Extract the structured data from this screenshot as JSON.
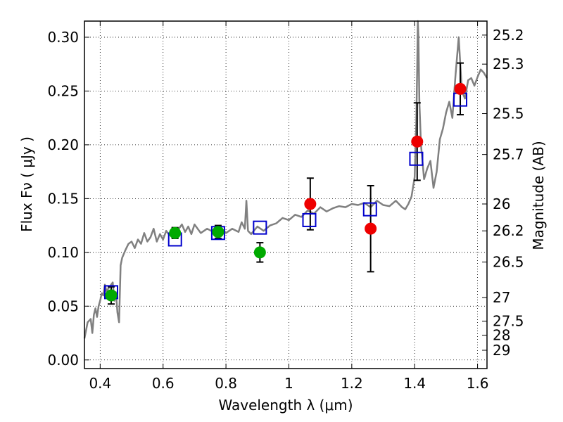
{
  "chart_data": {
    "type": "scatter",
    "xlabel": "Wavelength  λ (μm)",
    "ylabel": "Flux  Fν  ( μJy )",
    "ylabel_right": "Magnitude (AB)",
    "xlim": [
      0.35,
      1.63
    ],
    "ylim": [
      -0.008,
      0.315
    ],
    "grid": true,
    "x_ticks": [
      0.4,
      0.6,
      0.8,
      1.0,
      1.2,
      1.4,
      1.6
    ],
    "x_tick_labels": [
      "0.4",
      "0.6",
      "0.8",
      "1",
      "1.2",
      "1.4",
      "1.6"
    ],
    "y_ticks": [
      0.0,
      0.05,
      0.1,
      0.15,
      0.2,
      0.25,
      0.3
    ],
    "y_tick_labels": [
      "0.00",
      "0.05",
      "0.10",
      "0.15",
      "0.20",
      "0.25",
      "0.30"
    ],
    "right_ticks": [
      {
        "label": "25.2",
        "flux": 0.302
      },
      {
        "label": "25.3",
        "flux": 0.275
      },
      {
        "label": "25.5",
        "flux": 0.229
      },
      {
        "label": "25.7",
        "flux": 0.191
      },
      {
        "label": "26",
        "flux": 0.145
      },
      {
        "label": "26.2",
        "flux": 0.12
      },
      {
        "label": "26.5",
        "flux": 0.091
      },
      {
        "label": "27",
        "flux": 0.058
      },
      {
        "label": "27.5",
        "flux": 0.036
      },
      {
        "label": "28",
        "flux": 0.023
      },
      {
        "label": "29",
        "flux": 0.009
      }
    ],
    "series": [
      {
        "kind": "model-spectrum",
        "color": "#808080",
        "x": [
          0.35,
          0.36,
          0.37,
          0.375,
          0.38,
          0.385,
          0.39,
          0.395,
          0.4,
          0.405,
          0.41,
          0.415,
          0.42,
          0.43,
          0.44,
          0.445,
          0.45,
          0.455,
          0.46,
          0.465,
          0.47,
          0.48,
          0.49,
          0.5,
          0.51,
          0.52,
          0.53,
          0.54,
          0.55,
          0.56,
          0.57,
          0.58,
          0.59,
          0.6,
          0.61,
          0.62,
          0.63,
          0.64,
          0.65,
          0.66,
          0.67,
          0.68,
          0.69,
          0.7,
          0.72,
          0.74,
          0.76,
          0.78,
          0.8,
          0.82,
          0.84,
          0.85,
          0.86,
          0.865,
          0.87,
          0.88,
          0.9,
          0.92,
          0.94,
          0.96,
          0.98,
          1.0,
          1.02,
          1.04,
          1.06,
          1.08,
          1.1,
          1.12,
          1.14,
          1.16,
          1.18,
          1.2,
          1.22,
          1.24,
          1.26,
          1.28,
          1.3,
          1.32,
          1.34,
          1.36,
          1.37,
          1.38,
          1.39,
          1.4,
          1.405,
          1.408,
          1.41,
          1.412,
          1.415,
          1.42,
          1.43,
          1.44,
          1.45,
          1.46,
          1.47,
          1.48,
          1.49,
          1.5,
          1.51,
          1.52,
          1.53,
          1.54,
          1.55,
          1.56,
          1.57,
          1.58,
          1.59,
          1.6,
          1.61,
          1.62,
          1.63
        ],
        "y": [
          0.02,
          0.035,
          0.038,
          0.025,
          0.042,
          0.048,
          0.04,
          0.05,
          0.055,
          0.062,
          0.06,
          0.07,
          0.064,
          0.068,
          0.072,
          0.055,
          0.063,
          0.044,
          0.035,
          0.088,
          0.095,
          0.102,
          0.108,
          0.11,
          0.104,
          0.112,
          0.108,
          0.118,
          0.11,
          0.114,
          0.122,
          0.11,
          0.117,
          0.112,
          0.12,
          0.116,
          0.123,
          0.118,
          0.122,
          0.126,
          0.119,
          0.124,
          0.117,
          0.126,
          0.118,
          0.122,
          0.119,
          0.124,
          0.118,
          0.122,
          0.119,
          0.128,
          0.122,
          0.148,
          0.12,
          0.117,
          0.124,
          0.12,
          0.125,
          0.127,
          0.132,
          0.13,
          0.135,
          0.133,
          0.139,
          0.136,
          0.142,
          0.138,
          0.141,
          0.143,
          0.142,
          0.145,
          0.144,
          0.146,
          0.142,
          0.148,
          0.144,
          0.143,
          0.148,
          0.142,
          0.14,
          0.145,
          0.152,
          0.17,
          0.22,
          0.27,
          0.315,
          0.3,
          0.24,
          0.2,
          0.168,
          0.178,
          0.185,
          0.16,
          0.175,
          0.205,
          0.215,
          0.23,
          0.24,
          0.225,
          0.265,
          0.3,
          0.25,
          0.243,
          0.26,
          0.262,
          0.255,
          0.263,
          0.27,
          0.267,
          0.262
        ]
      },
      {
        "name": "",
        "kind": "open-square",
        "color": "#0000cc",
        "x": [
          0.435,
          0.638,
          0.775,
          0.908,
          1.065,
          1.258,
          1.405,
          1.545
        ],
        "y": [
          0.063,
          0.112,
          0.118,
          0.123,
          0.13,
          0.14,
          0.187,
          0.242
        ]
      },
      {
        "name": "",
        "kind": "filled-circle",
        "color": "#00aa00",
        "x": [
          0.435,
          0.638,
          0.775,
          0.908
        ],
        "y": [
          0.06,
          0.118,
          0.119,
          0.1
        ],
        "err": [
          0.008,
          0.005,
          0.006,
          0.009
        ]
      },
      {
        "name": "",
        "kind": "filled-circle",
        "color": "#ee0000",
        "x": [
          1.068,
          1.26,
          1.408,
          1.545
        ],
        "y": [
          0.145,
          0.122,
          0.203,
          0.252
        ],
        "err": [
          0.024,
          0.04,
          0.036,
          0.024
        ]
      }
    ]
  }
}
